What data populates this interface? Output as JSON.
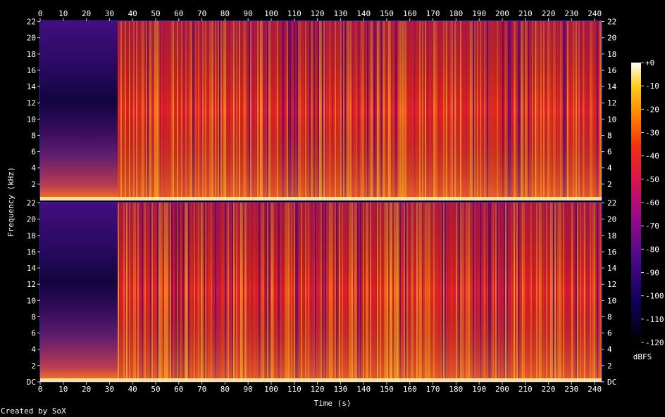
{
  "chart_data": {
    "type": "heatmap",
    "xlabel": "Time (s)",
    "ylabel": "Frequency (kHz)",
    "x_ticks": [
      0,
      10,
      20,
      30,
      40,
      50,
      60,
      70,
      80,
      90,
      100,
      110,
      120,
      130,
      140,
      150,
      160,
      170,
      180,
      190,
      200,
      210,
      220,
      230,
      240
    ],
    "xlim": [
      0,
      243
    ],
    "ylim_khz": [
      0,
      22.05
    ],
    "channels": [
      {
        "y_ticks": [
          "22",
          "20",
          "18",
          "16",
          "14",
          "12",
          "10",
          "8",
          "6",
          "4",
          "2"
        ]
      },
      {
        "y_ticks": [
          "22",
          "20",
          "18",
          "16",
          "14",
          "12",
          "10",
          "8",
          "6",
          "4",
          "2",
          "DC"
        ]
      }
    ],
    "colorbar": {
      "label": "dBFS",
      "range": [
        -120,
        0
      ],
      "ticks": [
        "+0",
        "-10",
        "-20",
        "-30",
        "-40",
        "-50",
        "-60",
        "-70",
        "-80",
        "-90",
        "-100",
        "-110",
        "-120"
      ]
    },
    "colors": {
      "background": "#000000",
      "frame": "#2a2a9a",
      "low": "#000000",
      "high": "#ffffff"
    }
  },
  "credit": "Created by SoX"
}
